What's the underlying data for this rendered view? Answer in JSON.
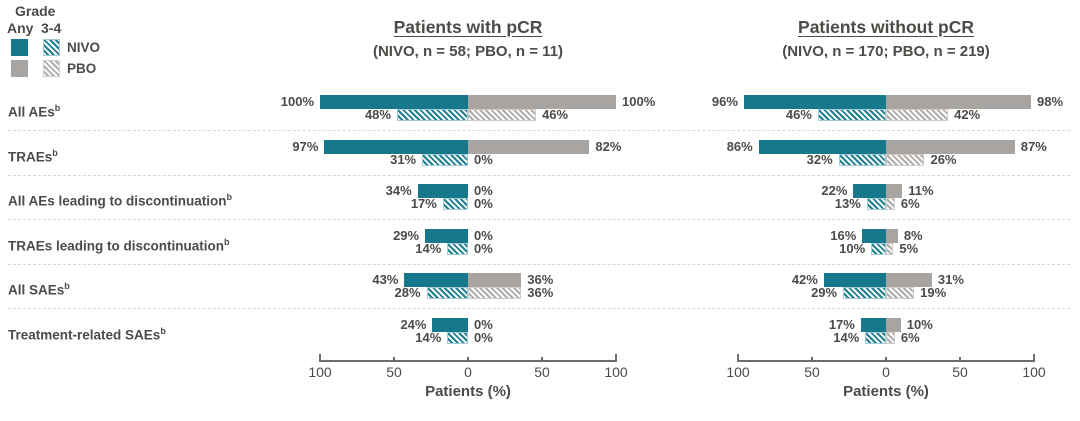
{
  "colors": {
    "nivo": "#17788B",
    "nivo_hatch": "#1F8093",
    "nivo_hatch_border": "#A3CBD3",
    "pbo": "#A8A4A1",
    "pbo_hatch": "#B0ACA9",
    "pbo_hatch_border": "#CFCCC9",
    "text": "#4C4B47",
    "axis": "#6E6C67",
    "separator": "#D8D8D3"
  },
  "legend": {
    "grade_label": "Grade",
    "any_label": "Any",
    "grade34_label": "3-4",
    "nivo_label": "NIVO",
    "pbo_label": "PBO"
  },
  "chart_data": {
    "type": "bar",
    "variant": "back-to-back grouped horizontal bars; NIVO extends left of zero, PBO extends right; each category has a solid 'Any grade' bar above a hatched 'Grade 3-4' bar",
    "xlabel": "Patients (%)",
    "x_ticks": [
      "100",
      "50",
      "0",
      "50",
      "100"
    ],
    "x_max": 100,
    "grades": [
      "Any",
      "3-4"
    ],
    "arms": [
      "NIVO",
      "PBO"
    ],
    "categories": [
      "All AEs",
      "TRAEs",
      "All AEs leading to discontinuation",
      "TRAEs leading to discontinuation",
      "All SAEs",
      "Treatment-related SAEs"
    ],
    "category_superscript": "b",
    "panels": [
      {
        "title": "Patients with pCR",
        "subtitle": "(NIVO, n = 58; PBO, n = 11)",
        "series": [
          {
            "category": "All AEs",
            "any_nivo": 100,
            "any_pbo": 100,
            "g34_nivo": 48,
            "g34_pbo": 46
          },
          {
            "category": "TRAEs",
            "any_nivo": 97,
            "any_pbo": 82,
            "g34_nivo": 31,
            "g34_pbo": 0
          },
          {
            "category": "All AEs leading to discontinuation",
            "any_nivo": 34,
            "any_pbo": 0,
            "g34_nivo": 17,
            "g34_pbo": 0
          },
          {
            "category": "TRAEs leading to discontinuation",
            "any_nivo": 29,
            "any_pbo": 0,
            "g34_nivo": 14,
            "g34_pbo": 0
          },
          {
            "category": "All SAEs",
            "any_nivo": 43,
            "any_pbo": 36,
            "g34_nivo": 28,
            "g34_pbo": 36
          },
          {
            "category": "Treatment-related SAEs",
            "any_nivo": 24,
            "any_pbo": 0,
            "g34_nivo": 14,
            "g34_pbo": 0
          }
        ]
      },
      {
        "title": "Patients without pCR",
        "subtitle": "(NIVO, n = 170; PBO, n = 219)",
        "series": [
          {
            "category": "All AEs",
            "any_nivo": 96,
            "any_pbo": 98,
            "g34_nivo": 46,
            "g34_pbo": 42
          },
          {
            "category": "TRAEs",
            "any_nivo": 86,
            "any_pbo": 87,
            "g34_nivo": 32,
            "g34_pbo": 26
          },
          {
            "category": "All AEs leading to discontinuation",
            "any_nivo": 22,
            "any_pbo": 11,
            "g34_nivo": 13,
            "g34_pbo": 6
          },
          {
            "category": "TRAEs leading to discontinuation",
            "any_nivo": 16,
            "any_pbo": 8,
            "g34_nivo": 10,
            "g34_pbo": 5
          },
          {
            "category": "All SAEs",
            "any_nivo": 42,
            "any_pbo": 31,
            "g34_nivo": 29,
            "g34_pbo": 19
          },
          {
            "category": "Treatment-related SAEs",
            "any_nivo": 17,
            "any_pbo": 10,
            "g34_nivo": 14,
            "g34_pbo": 6
          }
        ]
      }
    ]
  }
}
